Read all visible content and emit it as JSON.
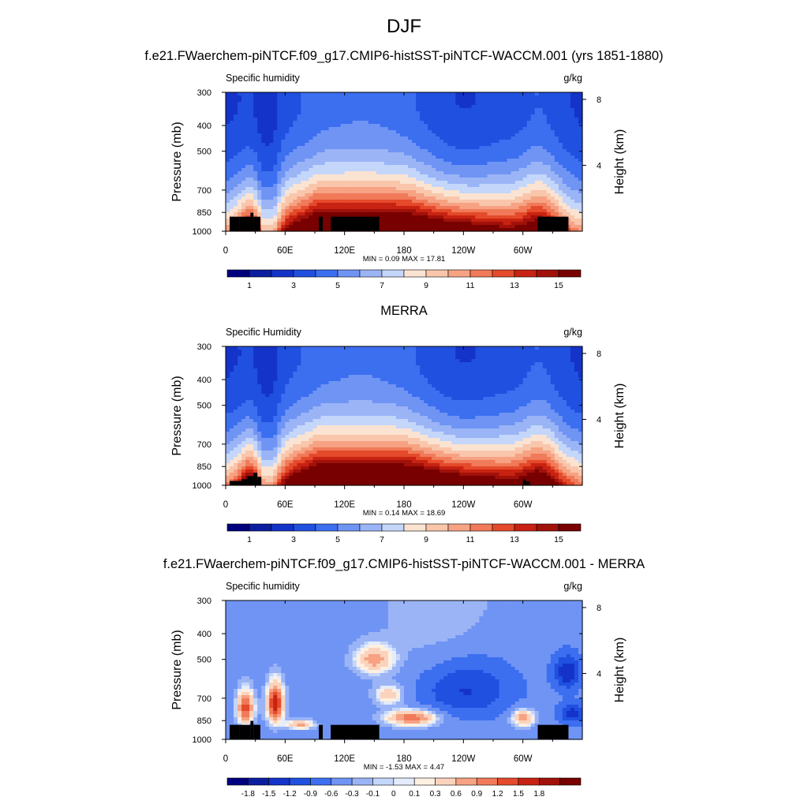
{
  "figure": {
    "title": "DJF",
    "subtitles": [
      "f.e21.FWaerchem-piNTCF.f09_g17.CMIP6-histSST-piNTCF-WACCM.001 (yrs 1851-1880)",
      "MERRA",
      "f.e21.FWaerchem-piNTCF.f09_g17.CMIP6-histSST-piNTCF-WACCM.001 - MERRA"
    ]
  },
  "chart_data": [
    {
      "type": "heatmap",
      "left_title": "Specific humidity",
      "units": "g/kg",
      "ylabel": "Pressure (mb)",
      "ylabel_right": "Height (km)",
      "x_ticks": [
        "0",
        "60E",
        "120E",
        "180",
        "120W",
        "60W"
      ],
      "x_tick_lon": [
        0,
        60,
        120,
        180,
        240,
        300
      ],
      "xlim": [
        0,
        360
      ],
      "y_ticks": [
        "300",
        "400",
        "500",
        "700",
        "850",
        "1000"
      ],
      "y_tick_values": [
        300,
        400,
        500,
        700,
        850,
        1000
      ],
      "ylim": [
        1000,
        300
      ],
      "right_ticks": [
        "8",
        "4"
      ],
      "right_tick_km": [
        8,
        4
      ],
      "stats": "MIN =   0.09  MAX =  17.81",
      "min": 0.09,
      "max": 17.81,
      "colorbar_labels": [
        "1",
        "3",
        "5",
        "7",
        "9",
        "11",
        "13",
        "15"
      ],
      "field": "model"
    },
    {
      "type": "heatmap",
      "left_title": "Specific Humidity",
      "units": "g/kg",
      "ylabel": "Pressure (mb)",
      "ylabel_right": "Height (km)",
      "x_ticks": [
        "0",
        "60E",
        "120E",
        "180",
        "120W",
        "60W"
      ],
      "x_tick_lon": [
        0,
        60,
        120,
        180,
        240,
        300
      ],
      "xlim": [
        0,
        360
      ],
      "y_ticks": [
        "300",
        "400",
        "500",
        "700",
        "850",
        "1000"
      ],
      "y_tick_values": [
        300,
        400,
        500,
        700,
        850,
        1000
      ],
      "ylim": [
        1000,
        300
      ],
      "right_ticks": [
        "8",
        "4"
      ],
      "right_tick_km": [
        8,
        4
      ],
      "stats": "MIN =   0.14  MAX =  18.69",
      "min": 0.14,
      "max": 18.69,
      "colorbar_labels": [
        "1",
        "3",
        "5",
        "7",
        "9",
        "11",
        "13",
        "15"
      ],
      "field": "obs"
    },
    {
      "type": "heatmap",
      "left_title": "Specific humidity",
      "units": "g/kg",
      "ylabel": "Pressure (mb)",
      "ylabel_right": "Height (km)",
      "x_ticks": [
        "0",
        "60E",
        "120E",
        "180",
        "120W",
        "60W"
      ],
      "x_tick_lon": [
        0,
        60,
        120,
        180,
        240,
        300
      ],
      "xlim": [
        0,
        360
      ],
      "y_ticks": [
        "300",
        "400",
        "500",
        "700",
        "850",
        "1000"
      ],
      "y_tick_values": [
        300,
        400,
        500,
        700,
        850,
        1000
      ],
      "ylim": [
        1000,
        300
      ],
      "right_ticks": [
        "8",
        "4"
      ],
      "right_tick_km": [
        8,
        4
      ],
      "stats": "MIN =  -1.53  MAX =   4.47",
      "min": -1.53,
      "max": 4.47,
      "colorbar_labels": [
        "-1.8",
        "-1.5",
        "-1.2",
        "-0.9",
        "-0.6",
        "-0.3",
        "-0.1",
        "0",
        "0.1",
        "0.3",
        "0.6",
        "0.9",
        "1.2",
        "1.5",
        "1.8"
      ],
      "field": "diff"
    }
  ],
  "colors": {
    "abs_scale": [
      "#00007f",
      "#0b1ea0",
      "#1433c8",
      "#2050e0",
      "#3c6ef0",
      "#6f94f4",
      "#9ab4f6",
      "#c4d6fa",
      "#fbe3d2",
      "#f9c6ab",
      "#f6a283",
      "#f07a59",
      "#e44a2b",
      "#c82312",
      "#a0110a",
      "#780000"
    ],
    "diff_scale": [
      "#00007f",
      "#0b1ea0",
      "#1433c8",
      "#2050e0",
      "#3c6ef0",
      "#6f94f4",
      "#9ab4f6",
      "#c4d6fa",
      "#e4ecfc",
      "#fdf0e2",
      "#fbd3bc",
      "#f6a283",
      "#f07a59",
      "#e44a2b",
      "#c82312",
      "#a0110a",
      "#780000"
    ],
    "topography": "#000000"
  }
}
